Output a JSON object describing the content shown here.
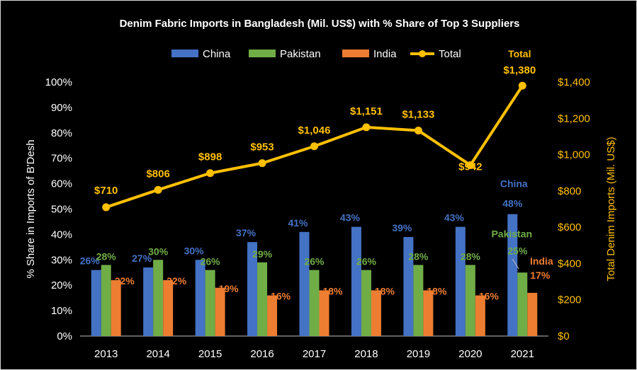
{
  "chart_data": {
    "type": "bar",
    "title": "Denim Fabric Imports in Bangladesh (Mil. US$) with % Share of Top 3 Suppliers",
    "ylabel_left": "% Share in  Imports of B'Desh",
    "ylabel_right": "Total Denim  Imports (Mil. US$)",
    "categories": [
      "2013",
      "2014",
      "2015",
      "2016",
      "2017",
      "2018",
      "2019",
      "2020",
      "2021"
    ],
    "y_left": {
      "ylim": [
        0,
        100
      ],
      "ticks": [
        "0%",
        "10%",
        "20%",
        "30%",
        "40%",
        "50%",
        "60%",
        "70%",
        "80%",
        "90%",
        "100%"
      ]
    },
    "y_right": {
      "ylim": [
        0,
        1400
      ],
      "ticks": [
        "$0",
        "$200",
        "$400",
        "$600",
        "$800",
        "$1,000",
        "$1,200",
        "$1,400"
      ]
    },
    "series": [
      {
        "name": "China",
        "type": "bar",
        "axis": "left",
        "color": "#4472C4",
        "label_color": "#4472C4",
        "values": [
          26,
          27,
          30,
          37,
          41,
          43,
          39,
          43,
          48
        ],
        "labels": [
          "26%",
          "27%",
          "30%",
          "37%",
          "41%",
          "43%",
          "39%",
          "43%",
          "48%"
        ]
      },
      {
        "name": "Pakistan",
        "type": "bar",
        "axis": "left",
        "color": "#70AD47",
        "label_color": "#70AD47",
        "values": [
          28,
          30,
          26,
          29,
          26,
          26,
          28,
          28,
          25
        ],
        "labels": [
          "28%",
          "30%",
          "26%",
          "29%",
          "26%",
          "26%",
          "28%",
          "28%",
          "25%"
        ]
      },
      {
        "name": "India",
        "type": "bar",
        "axis": "left",
        "color": "#ED7D31",
        "label_color": "#ED7D31",
        "values": [
          22,
          22,
          19,
          16,
          18,
          18,
          18,
          16,
          17
        ],
        "labels": [
          "22%",
          "22%",
          "19%",
          "16%",
          "18%",
          "18%",
          "18%",
          "16%",
          "17%"
        ]
      },
      {
        "name": "Total",
        "type": "line",
        "axis": "right",
        "color": "#FFC000",
        "label_color": "#FFC000",
        "values": [
          710,
          806,
          898,
          953,
          1046,
          1151,
          1133,
          942,
          1380
        ],
        "labels": [
          "$710",
          "$806",
          "$898",
          "$953",
          "$1,046",
          "$1,151",
          "$1,133",
          "$942",
          "$1,380"
        ]
      }
    ],
    "annotations": [
      {
        "text": "China",
        "series": "China",
        "color": "#4472C4"
      },
      {
        "text": "Pakistan",
        "series": "Pakistan",
        "color": "#70AD47"
      },
      {
        "text": "India",
        "series": "India",
        "color": "#ED7D31"
      },
      {
        "text": "Total",
        "series": "Total",
        "color": "#FFC000"
      }
    ],
    "legend": {
      "position": "top",
      "entries": [
        "China",
        "Pakistan",
        "India",
        "Total"
      ]
    },
    "grid": false,
    "colors": {
      "background": "#000000",
      "axis_text": "#FFFFFF",
      "right_axis_text": "#FFC000"
    }
  }
}
